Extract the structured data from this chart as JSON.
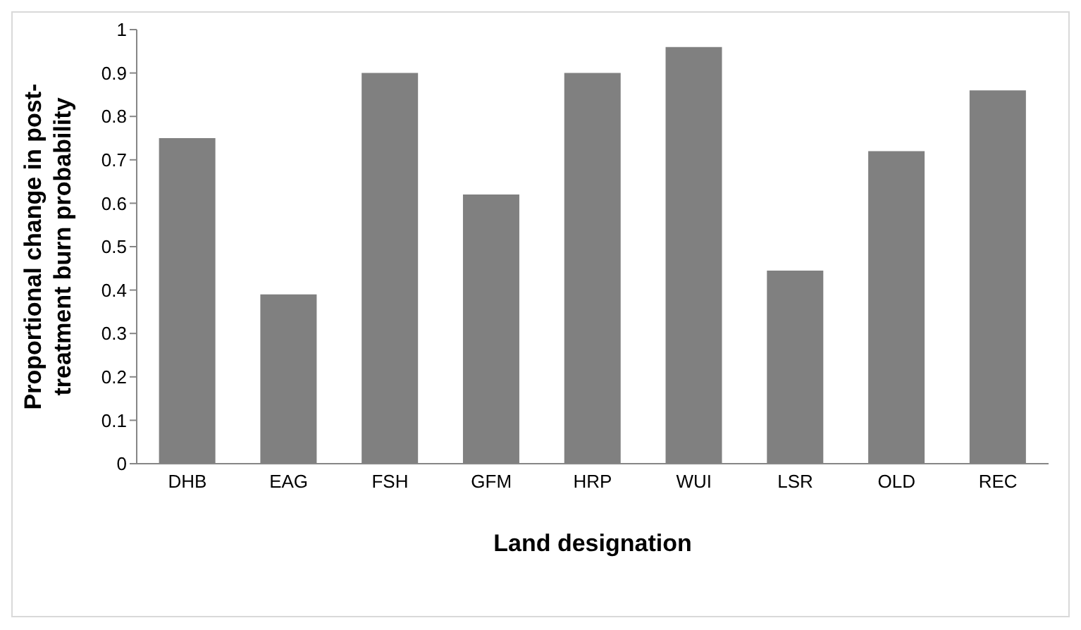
{
  "chart_data": {
    "type": "bar",
    "xlabel": "Land designation",
    "ylabel": "Proportional change in post-treatment burn probability",
    "categories": [
      "DHB",
      "EAG",
      "FSH",
      "GFM",
      "HRP",
      "WUI",
      "LSR",
      "OLD",
      "REC"
    ],
    "values": [
      0.75,
      0.39,
      0.9,
      0.62,
      0.9,
      0.96,
      0.445,
      0.72,
      0.86
    ],
    "color": "#808080",
    "ylim": [
      0,
      1
    ],
    "yticks": [
      0,
      0.1,
      0.2,
      0.3,
      0.4,
      0.5,
      0.6,
      0.7,
      0.8,
      0.9,
      1
    ],
    "grid": false,
    "legend": false
  }
}
